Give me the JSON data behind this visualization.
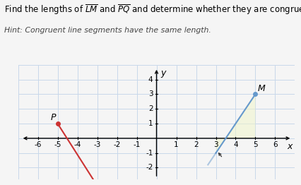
{
  "xlim": [
    -7,
    7
  ],
  "ylim": [
    -2.8,
    5
  ],
  "xticks": [
    -6,
    -5,
    -4,
    -3,
    -2,
    -1,
    1,
    2,
    3,
    4,
    5,
    6
  ],
  "yticks": [
    -2,
    -1,
    1,
    2,
    3,
    4
  ],
  "grid_color": "#c8d8ea",
  "background_color": "#f5f5f5",
  "L": [
    3,
    -1
  ],
  "M": [
    5,
    3
  ],
  "P": [
    -5,
    1
  ],
  "Q": [
    -4,
    0
  ],
  "lm_color": "#6699cc",
  "pq_color": "#cc3333",
  "shade_color": "#f0f5cc",
  "shade_alpha": 0.55,
  "title1": "Find the lengths of ",
  "title_lm": "LM",
  "title2": " and ",
  "title_pq": "PQ",
  "title3": " and determine whether they are congruent.",
  "subtitle": "Hint: Congruent line segments have the same length.",
  "title_fontsize": 8.5,
  "subtitle_fontsize": 7.8,
  "tick_fontsize": 7.5,
  "axis_label_fontsize": 9
}
